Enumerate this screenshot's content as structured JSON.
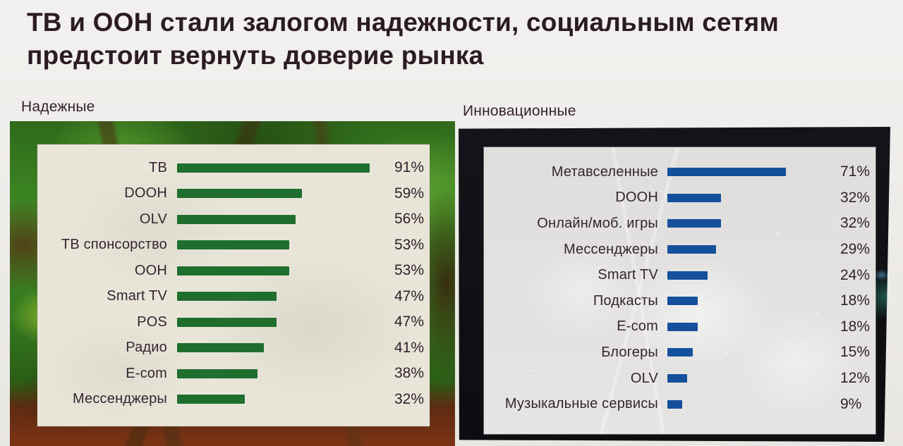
{
  "title": "ТВ и ООН стали залогом надежности, социальным сетям предстоит вернуть доверие рынка",
  "colors": {
    "slide_background": "#f2f0ed",
    "title_text": "#2a1a24",
    "label_text": "#352330",
    "green_bar": "#1e6e2d",
    "blue_bar": "#134f9c",
    "cream_panel": "#eae7da",
    "plexus_panel": "#e9e8e6",
    "dark_panel": "#0c0e11"
  },
  "chart_data": [
    {
      "type": "bar",
      "orientation": "horizontal",
      "title": "Надежные",
      "categories": [
        "ТВ",
        "DOOH",
        "OLV",
        "ТВ спонсорство",
        "OOH",
        "Smart TV",
        "POS",
        "Радио",
        "E-com",
        "Мессенджеры"
      ],
      "values": [
        91,
        59,
        56,
        53,
        53,
        47,
        47,
        41,
        38,
        32
      ],
      "unit": "%",
      "bar_color": "#1e6e2d",
      "xlim": [
        0,
        100
      ],
      "grid": false,
      "legend": "none",
      "value_labels": "end-of-bar"
    },
    {
      "type": "bar",
      "orientation": "horizontal",
      "title": "Инновационные",
      "categories": [
        "Метавселенные",
        "DOOH",
        "Онлайн/моб. игры",
        "Мессенджеры",
        "Smart TV",
        "Подкасты",
        "E-com",
        "Блогеры",
        "OLV",
        "Музыкальные сервисы"
      ],
      "values": [
        71,
        32,
        32,
        29,
        24,
        18,
        18,
        15,
        12,
        9
      ],
      "unit": "%",
      "bar_color": "#134f9c",
      "xlim": [
        0,
        100
      ],
      "grid": false,
      "legend": "none",
      "value_labels": "end-of-bar"
    }
  ]
}
